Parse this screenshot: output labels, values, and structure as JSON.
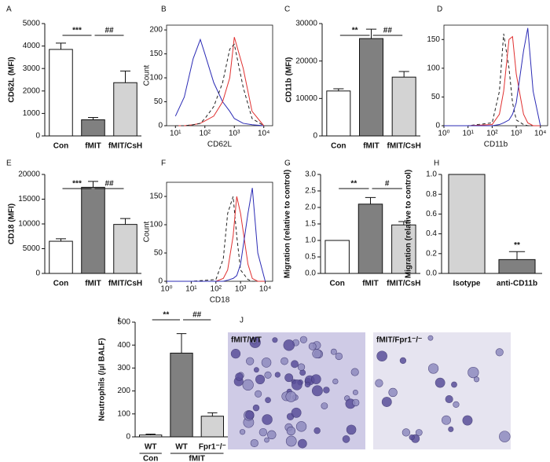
{
  "chart_data": [
    {
      "type": "bar",
      "label": "A",
      "y_label": "CD62L (MFI)",
      "categories": [
        "Con",
        "fMIT",
        "fMIT/CsH"
      ],
      "values": [
        3850,
        720,
        2370
      ],
      "errors": [
        280,
        100,
        520
      ],
      "colors": [
        "#ffffff",
        "#808080",
        "#d3d3d3"
      ],
      "ylim": [
        0,
        5000
      ],
      "yticks": [
        0,
        1000,
        2000,
        3000,
        4000,
        5000
      ],
      "annotations": [
        "***",
        "##"
      ]
    },
    {
      "type": "line",
      "label": "B",
      "x_label": "CD62L",
      "y_label": "Count",
      "xscale": "log",
      "xlim": [
        5,
        20000
      ],
      "xticks": [
        {
          "value": 10,
          "label": "10¹"
        },
        {
          "value": 100,
          "label": "10²"
        },
        {
          "value": 1000,
          "label": "10³"
        },
        {
          "value": 10000,
          "label": "10⁴"
        }
      ],
      "ylim": [
        0,
        210
      ],
      "yticks": [
        0,
        50,
        100,
        150,
        200
      ],
      "x": [
        10,
        20,
        40,
        70,
        100,
        200,
        400,
        700,
        1000,
        2000,
        4000,
        10000
      ],
      "series": [
        {
          "color": "#2b2bb5",
          "dashed": false,
          "values": [
            20,
            60,
            140,
            180,
            150,
            90,
            50,
            30,
            15,
            5,
            2,
            0
          ]
        },
        {
          "color": "#e03030",
          "dashed": false,
          "values": [
            0,
            0,
            2,
            5,
            10,
            20,
            50,
            100,
            185,
            120,
            30,
            0
          ]
        },
        {
          "color": "#222222",
          "dashed": true,
          "values": [
            0,
            0,
            2,
            5,
            15,
            40,
            90,
            160,
            170,
            80,
            15,
            0
          ]
        }
      ]
    },
    {
      "type": "bar",
      "label": "C",
      "y_label": "CD11b (MFI)",
      "categories": [
        "Con",
        "fMIT",
        "fMIT/CsH"
      ],
      "values": [
        12000,
        26000,
        15700
      ],
      "errors": [
        600,
        2500,
        1500
      ],
      "colors": [
        "#ffffff",
        "#808080",
        "#d3d3d3"
      ],
      "ylim": [
        0,
        30000
      ],
      "yticks": [
        0,
        10000,
        20000,
        30000
      ],
      "annotations": [
        "**",
        "##"
      ]
    },
    {
      "type": "line",
      "label": "D",
      "x_label": "CD11b",
      "xscale": "log",
      "xlim": [
        1,
        20000
      ],
      "xticks": [
        {
          "value": 1,
          "label": "10⁰"
        },
        {
          "value": 10,
          "label": "10¹"
        },
        {
          "value": 100,
          "label": "10²"
        },
        {
          "value": 1000,
          "label": "10³"
        },
        {
          "value": 10000,
          "label": "10⁴"
        }
      ],
      "ylim": [
        0,
        175
      ],
      "yticks": [
        0,
        50,
        100,
        150
      ],
      "x": [
        1,
        10,
        100,
        200,
        300,
        500,
        700,
        1000,
        2000,
        3000,
        5000,
        10000
      ],
      "series": [
        {
          "color": "#222222",
          "dashed": true,
          "values": [
            0,
            0,
            5,
            60,
            160,
            100,
            40,
            10,
            2,
            0,
            0,
            0
          ]
        },
        {
          "color": "#e03030",
          "dashed": false,
          "values": [
            0,
            0,
            2,
            20,
            60,
            150,
            155,
            90,
            20,
            5,
            0,
            0
          ]
        },
        {
          "color": "#2b2bb5",
          "dashed": false,
          "values": [
            0,
            0,
            0,
            2,
            5,
            10,
            20,
            40,
            130,
            170,
            60,
            0
          ]
        }
      ]
    },
    {
      "type": "bar",
      "label": "E",
      "y_label": "CD18 (MFI)",
      "categories": [
        "Con",
        "fMIT",
        "fMIT/CsH"
      ],
      "values": [
        6500,
        17400,
        9900
      ],
      "errors": [
        500,
        1200,
        1200
      ],
      "colors": [
        "#ffffff",
        "#808080",
        "#d3d3d3"
      ],
      "ylim": [
        0,
        20000
      ],
      "yticks": [
        0,
        5000,
        10000,
        15000,
        20000
      ],
      "annotations": [
        "***",
        "##"
      ]
    },
    {
      "type": "line",
      "label": "F",
      "x_label": "CD18",
      "y_label": "Count",
      "xscale": "log",
      "xlim": [
        1,
        20000
      ],
      "xticks": [
        {
          "value": 1,
          "label": "10⁰"
        },
        {
          "value": 10,
          "label": "10¹"
        },
        {
          "value": 100,
          "label": "10²"
        },
        {
          "value": 1000,
          "label": "10³"
        },
        {
          "value": 10000,
          "label": "10⁴"
        }
      ],
      "ylim": [
        0,
        175
      ],
      "yticks": [
        0,
        50,
        100,
        150
      ],
      "x": [
        1,
        10,
        100,
        200,
        300,
        500,
        700,
        1000,
        2000,
        3000,
        5000,
        10000
      ],
      "series": [
        {
          "color": "#222222",
          "dashed": true,
          "values": [
            0,
            0,
            3,
            40,
            120,
            150,
            80,
            20,
            3,
            0,
            0,
            0
          ]
        },
        {
          "color": "#e03030",
          "dashed": false,
          "values": [
            0,
            0,
            0,
            5,
            20,
            80,
            150,
            120,
            30,
            5,
            0,
            0
          ]
        },
        {
          "color": "#2b2bb5",
          "dashed": false,
          "values": [
            0,
            0,
            0,
            0,
            2,
            5,
            10,
            30,
            120,
            165,
            50,
            0
          ]
        }
      ]
    },
    {
      "type": "bar",
      "label": "G",
      "y_label": "Migration (relative to control)",
      "categories": [
        "Con",
        "fMIT",
        "fMIT/CsH"
      ],
      "values": [
        1.0,
        2.1,
        1.47
      ],
      "errors": [
        0,
        0.2,
        0.1
      ],
      "colors": [
        "#ffffff",
        "#808080",
        "#d3d3d3"
      ],
      "ylim": [
        0,
        3
      ],
      "yticks": [
        {
          "value": 0,
          "label": "0.0"
        },
        {
          "value": 0.5,
          "label": "0.5"
        },
        {
          "value": 1,
          "label": "1.0"
        },
        {
          "value": 1.5,
          "label": "1.5"
        },
        {
          "value": 2,
          "label": "2.0"
        },
        {
          "value": 2.5,
          "label": "2.5"
        },
        {
          "value": 3,
          "label": "3.0"
        }
      ],
      "annotations": [
        "**",
        "#"
      ]
    },
    {
      "type": "bar",
      "label": "H",
      "y_label": "Migration (relative to control)",
      "categories": [
        "Isotype",
        "anti-CD11b"
      ],
      "values": [
        1.0,
        0.14
      ],
      "errors": [
        0,
        0.08
      ],
      "colors": [
        "#d3d3d3",
        "#808080"
      ],
      "ylim": [
        0,
        1
      ],
      "yticks": [
        {
          "value": 0,
          "label": "0.0"
        },
        {
          "value": 0.2,
          "label": "0.2"
        },
        {
          "value": 0.4,
          "label": "0.4"
        },
        {
          "value": 0.6,
          "label": "0.6"
        },
        {
          "value": 0.8,
          "label": "0.8"
        },
        {
          "value": 1,
          "label": "1.0"
        }
      ],
      "annotations": [
        "**"
      ]
    },
    {
      "type": "bar",
      "label": "I",
      "y_label": "Neutrophils (/µl BALF)",
      "categories": [
        "WT",
        "WT",
        "Fpr1⁻/⁻"
      ],
      "groups": [
        "Con",
        "fMIT"
      ],
      "values": [
        8,
        365,
        90
      ],
      "errors": [
        4,
        85,
        15
      ],
      "colors": [
        "#ffffff",
        "#808080",
        "#d3d3d3"
      ],
      "ylim": [
        0,
        500
      ],
      "yticks": [
        0,
        100,
        200,
        300,
        400,
        500
      ],
      "annotations": [
        "**",
        "##"
      ]
    },
    {
      "type": "image",
      "label": "J",
      "images": [
        "fMIT/WT",
        "fMIT/Fpr1⁻/⁻"
      ]
    }
  ]
}
